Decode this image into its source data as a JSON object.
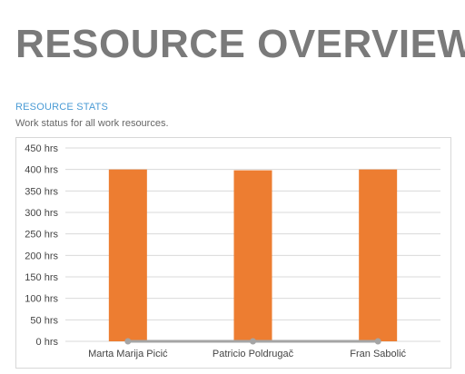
{
  "report": {
    "title": "RESOURCE OVERVIEW",
    "section_title": "RESOURCE STATS",
    "section_description": "Work status for all work resources."
  },
  "colors": {
    "bar": "#ed7d31",
    "line": "#a5a5a5",
    "title": "#7a7a7a",
    "section_title": "#4a9bd5",
    "gridline": "#d9d9d9"
  },
  "chart_data": {
    "type": "bar",
    "categories": [
      "Marta Marija Picić",
      "Patricio Poldrugač",
      "Fran Sabolić"
    ],
    "series": [
      {
        "type": "bar",
        "values": [
          400,
          398,
          400
        ]
      },
      {
        "type": "line",
        "values": [
          0,
          0,
          0
        ]
      }
    ],
    "yticks": [
      "0 hrs",
      "50 hrs",
      "100 hrs",
      "150 hrs",
      "200 hrs",
      "250 hrs",
      "300 hrs",
      "350 hrs",
      "400 hrs",
      "450 hrs"
    ],
    "ylim": [
      0,
      450
    ],
    "grid": true,
    "legend": "none"
  }
}
